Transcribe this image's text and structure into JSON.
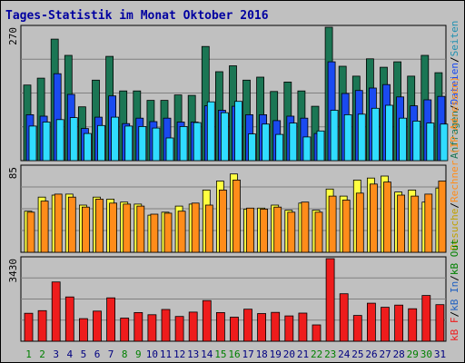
{
  "title": "Tages-Statistik im Monat Oktober 2016",
  "colors": {
    "background": "#c0c0c0",
    "title": "#0000a0",
    "grid": "#808080",
    "weekday_label": "#000080",
    "weekend_label": "#008000",
    "anfragen": "#1b7654",
    "dateien": "#1a4af0",
    "seiten": "#30dcff",
    "besuche": "#ffff40",
    "rechner": "#ff8c1a",
    "kb": "#ee1c1c",
    "bar_outline": "#000000"
  },
  "legend": {
    "top": [
      {
        "text": "Anfragen",
        "color": "#1b7654"
      },
      {
        "text": "/",
        "color": "#000000"
      },
      {
        "text": "Dateien",
        "color": "#1a4af0"
      },
      {
        "text": "/",
        "color": "#000000"
      },
      {
        "text": "Seiten",
        "color": "#2090b0"
      }
    ],
    "middle": [
      {
        "text": "Besuche",
        "color": "#c0a000"
      },
      {
        "text": "/",
        "color": "#000000"
      },
      {
        "text": "Rechner (IP-Adressen)",
        "color": "#ff8c1a"
      }
    ],
    "bottom": [
      {
        "text": "kB F",
        "color": "#ee1c1c"
      },
      {
        "text": "/",
        "color": "#000000"
      },
      {
        "text": "kB In",
        "color": "#2060c0"
      },
      {
        "text": "/",
        "color": "#000000"
      },
      {
        "text": "kB Out",
        "color": "#008000"
      }
    ]
  },
  "chart_data": [
    {
      "type": "bar",
      "panel": "hits",
      "ymax_label": "270",
      "ylim": [
        0,
        270
      ],
      "categories": [
        "1",
        "2",
        "3",
        "4",
        "5",
        "6",
        "7",
        "8",
        "9",
        "10",
        "11",
        "12",
        "13",
        "14",
        "15",
        "16",
        "17",
        "18",
        "19",
        "20",
        "21",
        "22",
        "23",
        "24",
        "25",
        "26",
        "27",
        "28",
        "29",
        "30",
        "31"
      ],
      "weekend_days": [
        1,
        2,
        8,
        9,
        15,
        16,
        22,
        23,
        29,
        30
      ],
      "series": [
        {
          "name": "Anfragen",
          "values": [
            153,
            167,
            246,
            213,
            109,
            163,
            211,
            141,
            141,
            122,
            122,
            133,
            132,
            231,
            180,
            192,
            163,
            169,
            140,
            159,
            141,
            110,
            270,
            191,
            171,
            206,
            189,
            200,
            171,
            213,
            178
          ]
        },
        {
          "name": "Dateien",
          "values": [
            93,
            90,
            176,
            134,
            65,
            88,
            131,
            75,
            86,
            79,
            86,
            78,
            78,
            111,
            102,
            110,
            93,
            93,
            81,
            90,
            86,
            55,
            200,
            136,
            142,
            147,
            154,
            129,
            111,
            123,
            130
          ]
        },
        {
          "name": "Seiten",
          "values": [
            70,
            78,
            83,
            87,
            55,
            71,
            88,
            70,
            69,
            66,
            46,
            69,
            77,
            119,
            97,
            120,
            54,
            74,
            53,
            76,
            48,
            60,
            102,
            93,
            94,
            106,
            112,
            86,
            80,
            76,
            74
          ]
        }
      ]
    },
    {
      "type": "bar",
      "panel": "visits",
      "ymax_label": "85",
      "ylim": [
        0,
        85
      ],
      "categories": [
        "1",
        "2",
        "3",
        "4",
        "5",
        "6",
        "7",
        "8",
        "9",
        "10",
        "11",
        "12",
        "13",
        "14",
        "15",
        "16",
        "17",
        "18",
        "19",
        "20",
        "21",
        "22",
        "23",
        "24",
        "25",
        "26",
        "27",
        "28",
        "29",
        "30",
        "31"
      ],
      "series": [
        {
          "name": "Besuche",
          "values": [
            41,
            55,
            57,
            58,
            47,
            55,
            53,
            50,
            48,
            37,
            40,
            46,
            48,
            62,
            71,
            78,
            43,
            44,
            47,
            42,
            49,
            42,
            63,
            56,
            72,
            74,
            76,
            60,
            62,
            50,
            64
          ]
        },
        {
          "name": "Rechner (IP-Adressen)",
          "values": [
            40,
            51,
            58,
            55,
            45,
            53,
            49,
            48,
            46,
            38,
            39,
            41,
            49,
            47,
            62,
            72,
            44,
            43,
            45,
            40,
            50,
            40,
            56,
            52,
            59,
            68,
            70,
            57,
            56,
            58,
            71
          ]
        }
      ]
    },
    {
      "type": "bar",
      "panel": "kb",
      "ymax_label": "3430",
      "ylim": [
        0,
        3430
      ],
      "categories": [
        "1",
        "2",
        "3",
        "4",
        "5",
        "6",
        "7",
        "8",
        "9",
        "10",
        "11",
        "12",
        "13",
        "14",
        "15",
        "16",
        "17",
        "18",
        "19",
        "20",
        "21",
        "22",
        "23",
        "24",
        "25",
        "26",
        "27",
        "28",
        "29",
        "30",
        "31"
      ],
      "series": [
        {
          "name": "kB F",
          "values": [
            1160,
            1270,
            2460,
            1840,
            940,
            1250,
            1800,
            960,
            1190,
            1100,
            1320,
            1030,
            1210,
            1690,
            1190,
            1000,
            1330,
            1150,
            1200,
            1050,
            1170,
            680,
            3430,
            1970,
            1070,
            1580,
            1410,
            1500,
            1350,
            1900,
            1520
          ]
        }
      ]
    }
  ]
}
